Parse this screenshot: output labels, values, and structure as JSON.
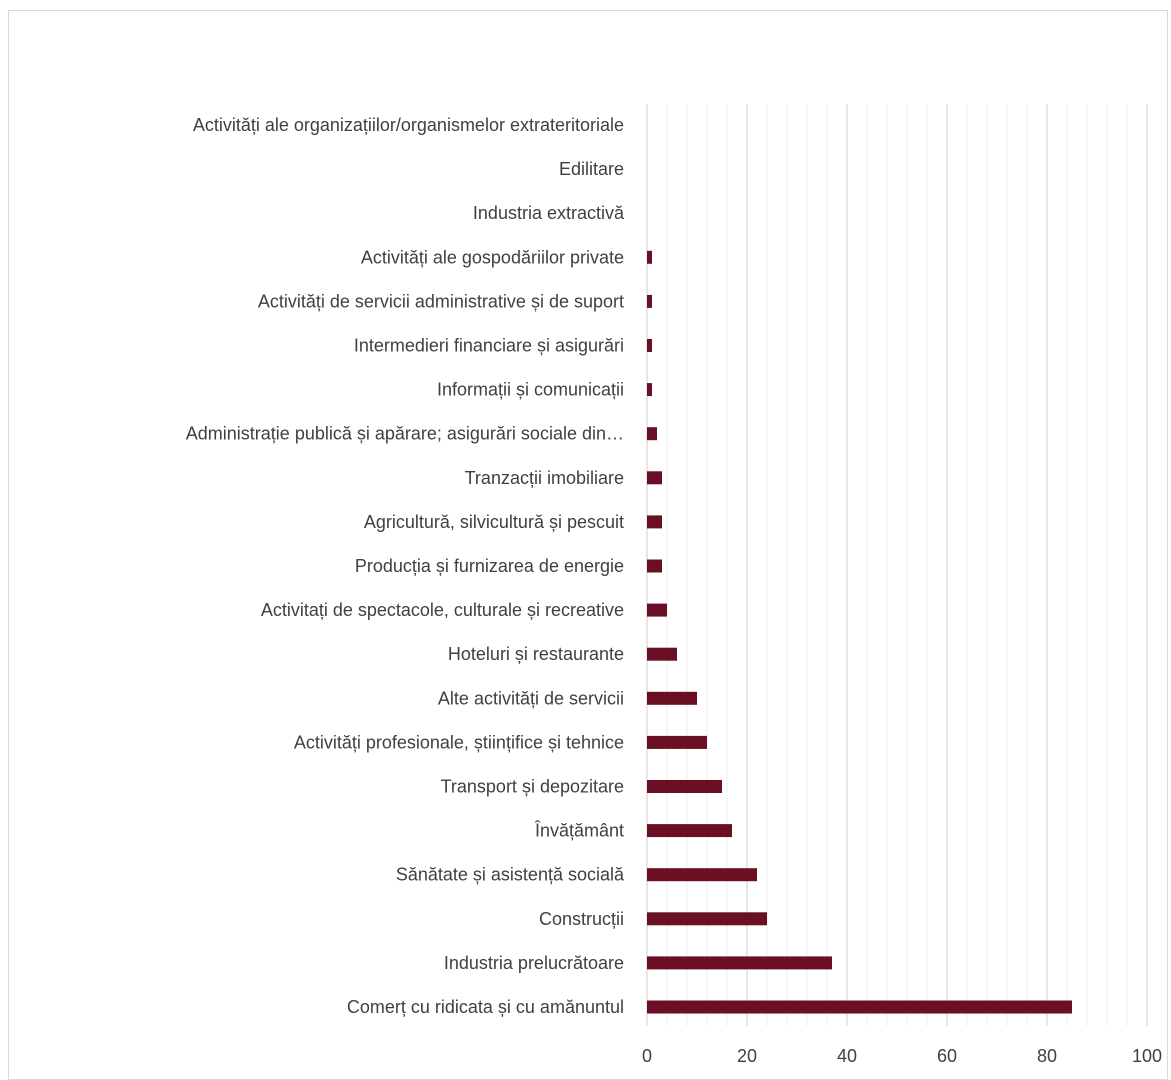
{
  "chart_data": {
    "type": "bar",
    "orientation": "horizontal",
    "title": "",
    "xlabel": "",
    "ylabel": "",
    "xlim": [
      0,
      100
    ],
    "major_ticks": [
      0,
      20,
      40,
      60,
      80,
      100
    ],
    "minor_tick_step": 4,
    "grid": true,
    "legend": "none",
    "bar_color": "#6b0f24",
    "major_grid_color": "#d9d9d9",
    "minor_grid_color": "#ececec",
    "categories": [
      "Activități ale organizațiilor/organismelor extrateritoriale",
      "Edilitare",
      "Industria extractivă",
      "Activități ale gospodăriilor private",
      "Activități de servicii administrative și de suport",
      "Intermedieri financiare și asigurări",
      "Informații și comunicații",
      "Administrație publică și apărare; asigurări sociale din…",
      "Tranzacții imobiliare",
      "Agricultură, silvicultură și pescuit",
      "Producția și furnizarea de energie",
      "Activitați de spectacole, culturale și recreative",
      "Hoteluri și restaurante",
      "Alte activități de servicii",
      "Activități profesionale, științifice și tehnice",
      "Transport și depozitare",
      "Învățământ",
      "Sănătate și asistență socială",
      "Construcții",
      "Industria prelucrătoare",
      "Comerț cu ridicata și cu amănuntul"
    ],
    "values": [
      0,
      0,
      0,
      1,
      1,
      1,
      1,
      2,
      3,
      3,
      3,
      4,
      6,
      10,
      12,
      15,
      17,
      22,
      24,
      37,
      85
    ]
  }
}
